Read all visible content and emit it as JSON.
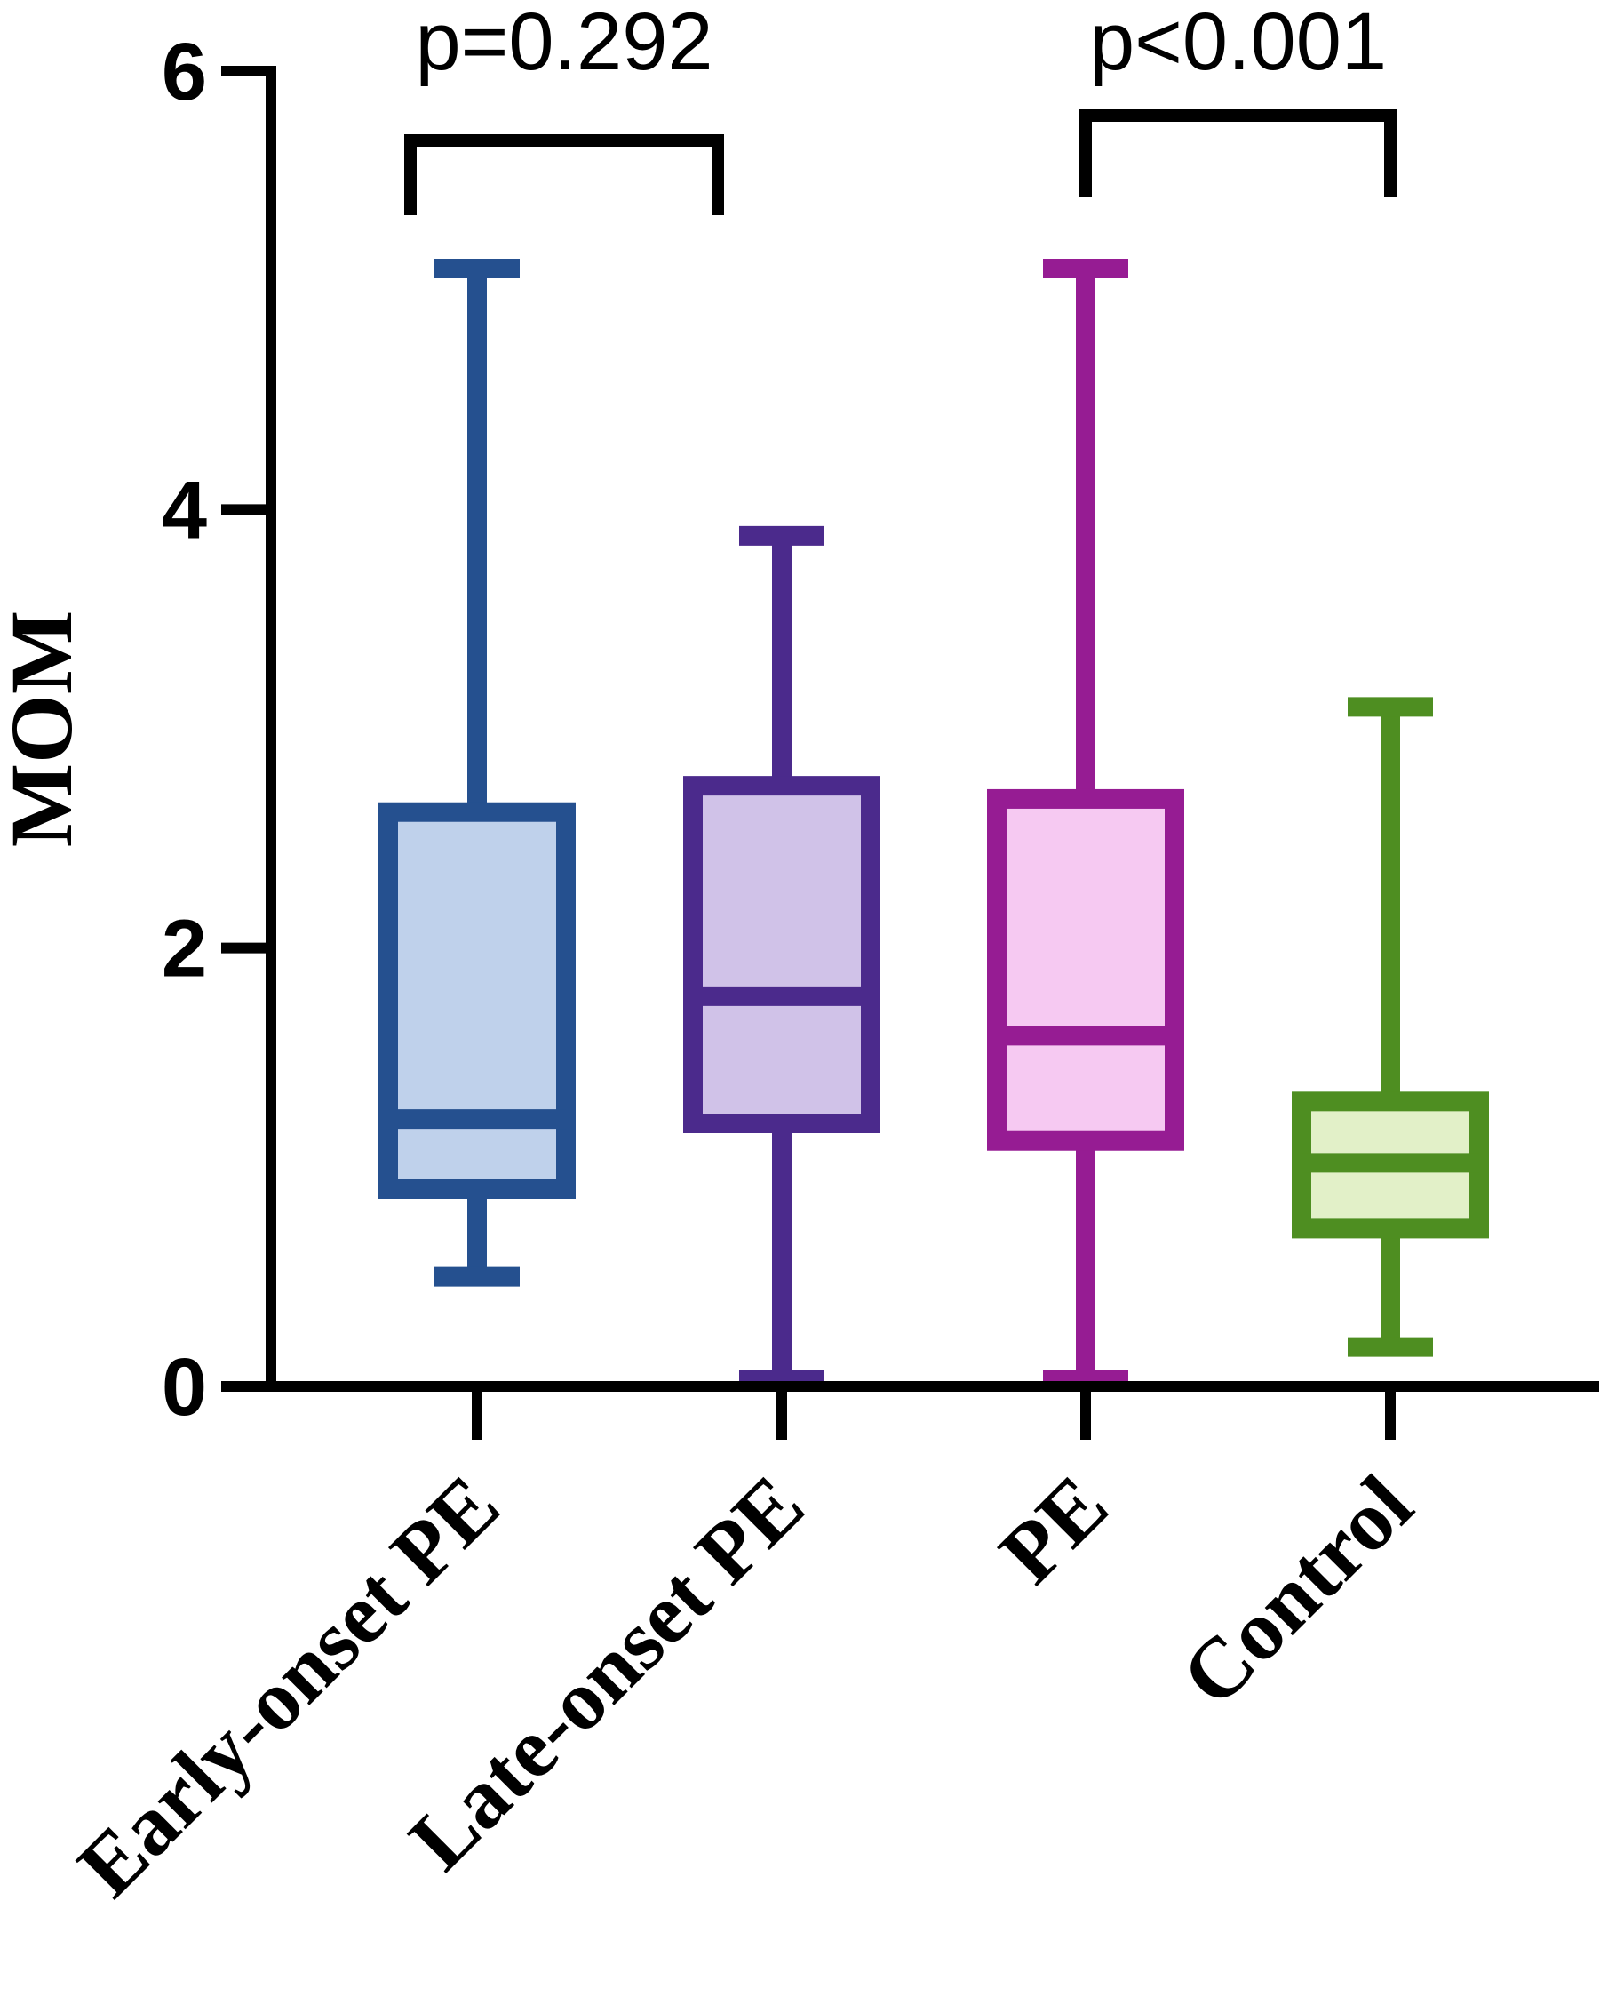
{
  "chart_data": {
    "type": "boxplot",
    "ylabel": "MOM",
    "ylim": [
      0,
      6
    ],
    "yticks": [
      "0",
      "2",
      "4",
      "6"
    ],
    "categories": [
      "Early-onset PE",
      "Late-onset PE",
      "PE",
      "Control"
    ],
    "boxes": [
      {
        "name": "Early-onset PE",
        "min": 0.5,
        "q1": 0.9,
        "median": 1.22,
        "q3": 2.62,
        "max": 5.1,
        "stroke": "#25508F",
        "fill": "#BFD1EB"
      },
      {
        "name": "Late-onset PE",
        "min": 0.03,
        "q1": 1.2,
        "median": 1.78,
        "q3": 2.74,
        "max": 3.88,
        "stroke": "#4B2A8C",
        "fill": "#D0C2E8"
      },
      {
        "name": "PE",
        "min": 0.03,
        "q1": 1.12,
        "median": 1.6,
        "q3": 2.68,
        "max": 5.1,
        "stroke": "#961C93",
        "fill": "#F6C9F2"
      },
      {
        "name": "Control",
        "min": 0.18,
        "q1": 0.72,
        "median": 1.02,
        "q3": 1.3,
        "max": 3.1,
        "stroke": "#4E8E21",
        "fill": "#E2F0C8"
      }
    ],
    "comparisons": [
      {
        "label": "p=0.292",
        "from": 0,
        "to": 1
      },
      {
        "label": "p<0.001",
        "from": 2,
        "to": 3
      }
    ],
    "grid": false,
    "legend": "none"
  }
}
